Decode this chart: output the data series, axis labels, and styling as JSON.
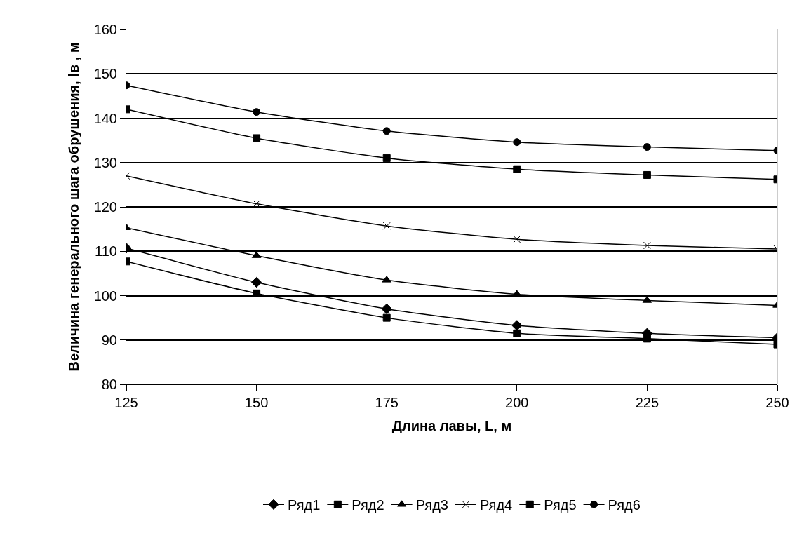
{
  "chart_data": {
    "type": "line",
    "xlabel": "Длина лавы, L, м",
    "ylabel": "Величина генерального шага обрушения, lв , м",
    "x": [
      125,
      150,
      175,
      200,
      225,
      250
    ],
    "xlim": [
      125,
      250
    ],
    "xticks": [
      125,
      150,
      175,
      200,
      225,
      250
    ],
    "ylim": [
      80,
      160
    ],
    "yticks": [
      80,
      90,
      100,
      110,
      120,
      130,
      140,
      150,
      160
    ],
    "grid": "y",
    "legend": "bottom",
    "series": [
      {
        "name": "Ряд1",
        "color": "#000000",
        "marker": "diamond",
        "values": [
          110.7,
          103,
          97,
          93.3,
          91.5,
          90.5
        ]
      },
      {
        "name": "Ряд2",
        "color": "#000000",
        "marker": "square",
        "values": [
          107.7,
          100.5,
          95,
          91.5,
          90.3,
          89
        ]
      },
      {
        "name": "Ряд3",
        "color": "#000000",
        "marker": "triangle",
        "values": [
          115.3,
          109,
          103.5,
          100.3,
          98.9,
          97.8
        ]
      },
      {
        "name": "Ряд4",
        "color": "#000000",
        "marker": "cross",
        "values": [
          127,
          120.7,
          115.7,
          112.7,
          111.3,
          110.5
        ]
      },
      {
        "name": "Ряд5",
        "color": "#000000",
        "marker": "square",
        "values": [
          142,
          135.5,
          131,
          128.5,
          127.2,
          126.2
        ]
      },
      {
        "name": "Ряд6",
        "color": "#000000",
        "marker": "circle",
        "values": [
          147.4,
          141.4,
          137.1,
          134.6,
          133.5,
          132.7
        ]
      }
    ]
  }
}
